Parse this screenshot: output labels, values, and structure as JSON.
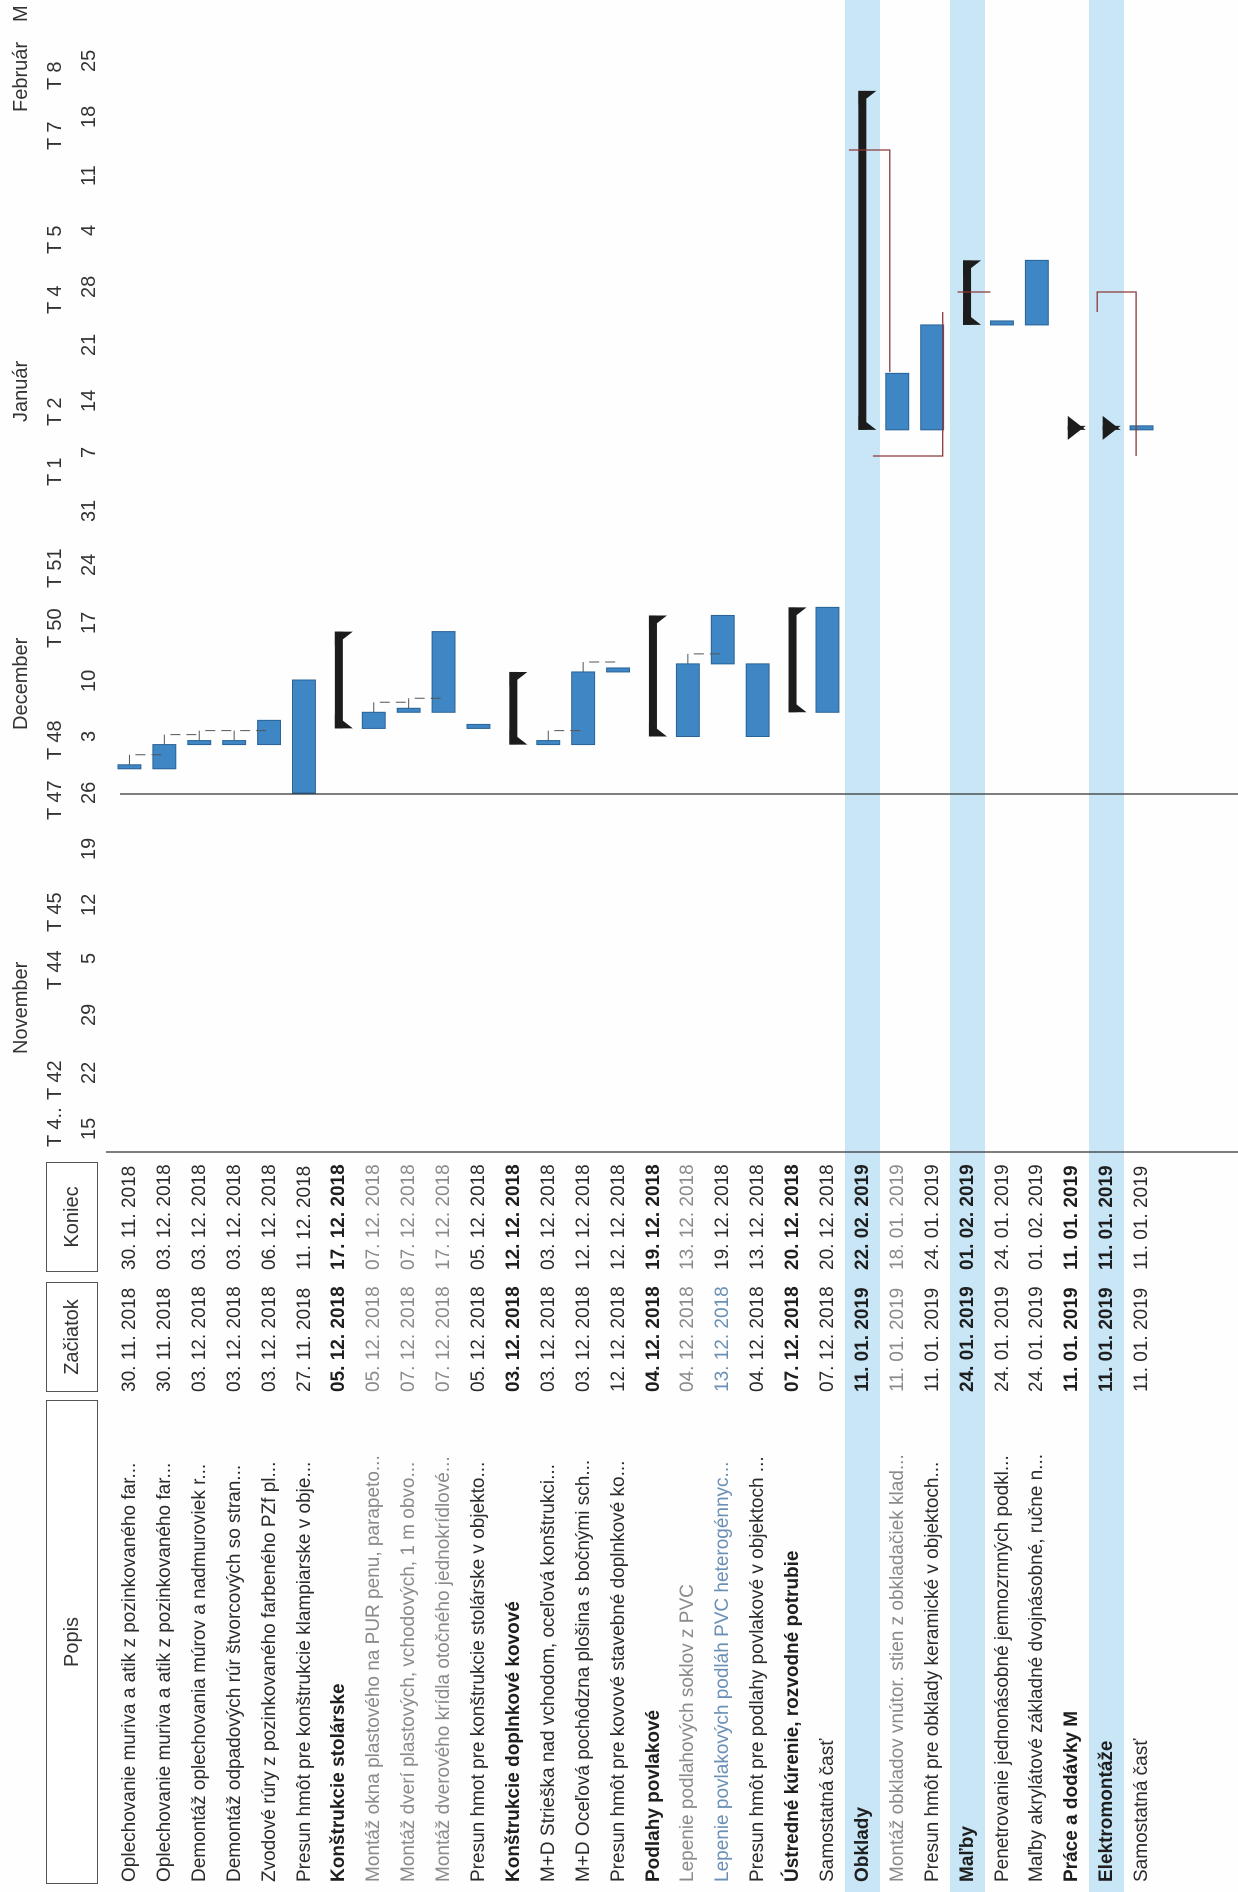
{
  "header": {
    "col_popis": "Popis",
    "col_zaciatok": "Začiatok",
    "col_koniec": "Koniec",
    "months": [
      "November",
      "December",
      "Január",
      "Február",
      "M"
    ],
    "weeks": [
      "T 4..",
      "T 42",
      "T 44",
      "T 45",
      "T 47",
      "T 48",
      "T 50",
      "T 51",
      "T 1",
      "T 2",
      "T 4",
      "T 5",
      "T 7",
      "T 8"
    ],
    "days": [
      "15",
      "22",
      "29",
      "5",
      "12",
      "19",
      "26",
      "3",
      "10",
      "17",
      "24",
      "31",
      "7",
      "14",
      "21",
      "28",
      "4",
      "11",
      "18",
      "25"
    ]
  },
  "tasks": [
    {
      "name": "Oplechovanie muriva a atik z pozinkovaného far...",
      "start": "30. 11. 2018",
      "end": "30. 11. 2018"
    },
    {
      "name": "Oplechovanie muriva a atik z pozinkovaného far...",
      "start": "30. 11. 2018",
      "end": "03. 12. 2018"
    },
    {
      "name": "Demontáž oplechovania múrov a nadmuroviek r...",
      "start": "03. 12. 2018",
      "end": "03. 12. 2018"
    },
    {
      "name": "Demontáž odpadových rúr štvorcových so stran...",
      "start": "03. 12. 2018",
      "end": "03. 12. 2018"
    },
    {
      "name": "Zvodové rúry z pozinkovaného farbeného PZf pl...",
      "start": "03. 12. 2018",
      "end": "06. 12. 2018"
    },
    {
      "name": "Presun hmôt pre konštrukcie klampiarske v obje...",
      "start": "27. 11. 2018",
      "end": "11. 12. 2018"
    },
    {
      "name": "Konštrukcie stolárske",
      "start": "05. 12. 2018",
      "end": "17. 12. 2018",
      "style": "bold"
    },
    {
      "name": "Montáž okna plastového na PUR penu, parapeto...",
      "start": "05. 12. 2018",
      "end": "07. 12. 2018",
      "style": "muted"
    },
    {
      "name": "Montáž dverí plastových, vchodových, 1 m obvo...",
      "start": "07. 12. 2018",
      "end": "07. 12. 2018",
      "style": "muted"
    },
    {
      "name": "Montáž dverového krídla otočného jednokrídlové...",
      "start": "07. 12. 2018",
      "end": "17. 12. 2018",
      "style": "muted"
    },
    {
      "name": "Presun hmot pre konštrukcie stolárske v objekto...",
      "start": "05. 12. 2018",
      "end": "05. 12. 2018"
    },
    {
      "name": "Konštrukcie doplnkové kovové",
      "start": "03. 12. 2018",
      "end": "12. 12. 2018",
      "style": "bold"
    },
    {
      "name": "M+D Strieška nad vchodom, oceľová konštrukci...",
      "start": "03. 12. 2018",
      "end": "03. 12. 2018"
    },
    {
      "name": "M+D Oceľová pochôdzna plošina s bočnými sch...",
      "start": "03. 12. 2018",
      "end": "12. 12. 2018"
    },
    {
      "name": "Presun hmôt pre kovové stavebné doplnkové ko...",
      "start": "12. 12. 2018",
      "end": "12. 12. 2018"
    },
    {
      "name": "Podlahy povlakové",
      "start": "04. 12. 2018",
      "end": "19. 12. 2018",
      "style": "bold"
    },
    {
      "name": "Lepenie podlahových soklov z PVC",
      "start": "04. 12. 2018",
      "end": "13. 12. 2018",
      "style": "muted"
    },
    {
      "name": "Lepenie povlakových podláh PVC heterogénnyc...",
      "start": "13. 12. 2018",
      "end": "19. 12. 2018",
      "style": "blue"
    },
    {
      "name": "Presun hmôt pre podlahy povlakové v objektoch ...",
      "start": "04. 12. 2018",
      "end": "13. 12. 2018"
    },
    {
      "name": "Ústredné kúrenie, rozvodné potrubie",
      "start": "07. 12. 2018",
      "end": "20. 12. 2018",
      "style": "bold"
    },
    {
      "name": "Samostatná časť",
      "start": "07. 12. 2018",
      "end": "20. 12. 2018"
    },
    {
      "name": "Obklady",
      "start": "11. 01. 2019",
      "end": "22. 02. 2019",
      "style": "bold",
      "highlight": true
    },
    {
      "name": "Montáž obkladov vnútor. stien z obkladačiek klad...",
      "start": "11. 01. 2019",
      "end": "18. 01. 2019",
      "style": "muted"
    },
    {
      "name": "Presun hmôt pre obklady keramické v objektoch...",
      "start": "11. 01. 2019",
      "end": "24. 01. 2019"
    },
    {
      "name": "Maľby",
      "start": "24. 01. 2019",
      "end": "01. 02. 2019",
      "style": "bold",
      "highlight": true
    },
    {
      "name": "Penetrovanie jednonásobné jemnozrnných podkl...",
      "start": "24. 01. 2019",
      "end": "24. 01. 2019"
    },
    {
      "name": "Maľby akrylátové základné dvojnásobné, ručne n...",
      "start": "24. 01. 2019",
      "end": "01. 02. 2019"
    },
    {
      "name": "Práce a dodávky M",
      "start": "11. 01. 2019",
      "end": "11. 01. 2019",
      "style": "bold"
    },
    {
      "name": "Elektromontáže",
      "start": "11. 01. 2019",
      "end": "11. 01. 2019",
      "style": "bold",
      "highlight": true
    },
    {
      "name": "Samostatná časť",
      "start": "11. 01. 2019",
      "end": "11. 01. 2019"
    }
  ],
  "colors": {
    "bar": "#3f86c4",
    "bar_edge": "#2a6396",
    "summary": "#1c1c1c",
    "highlight": "#c9e6f7",
    "link": "#8a3a3a"
  }
}
